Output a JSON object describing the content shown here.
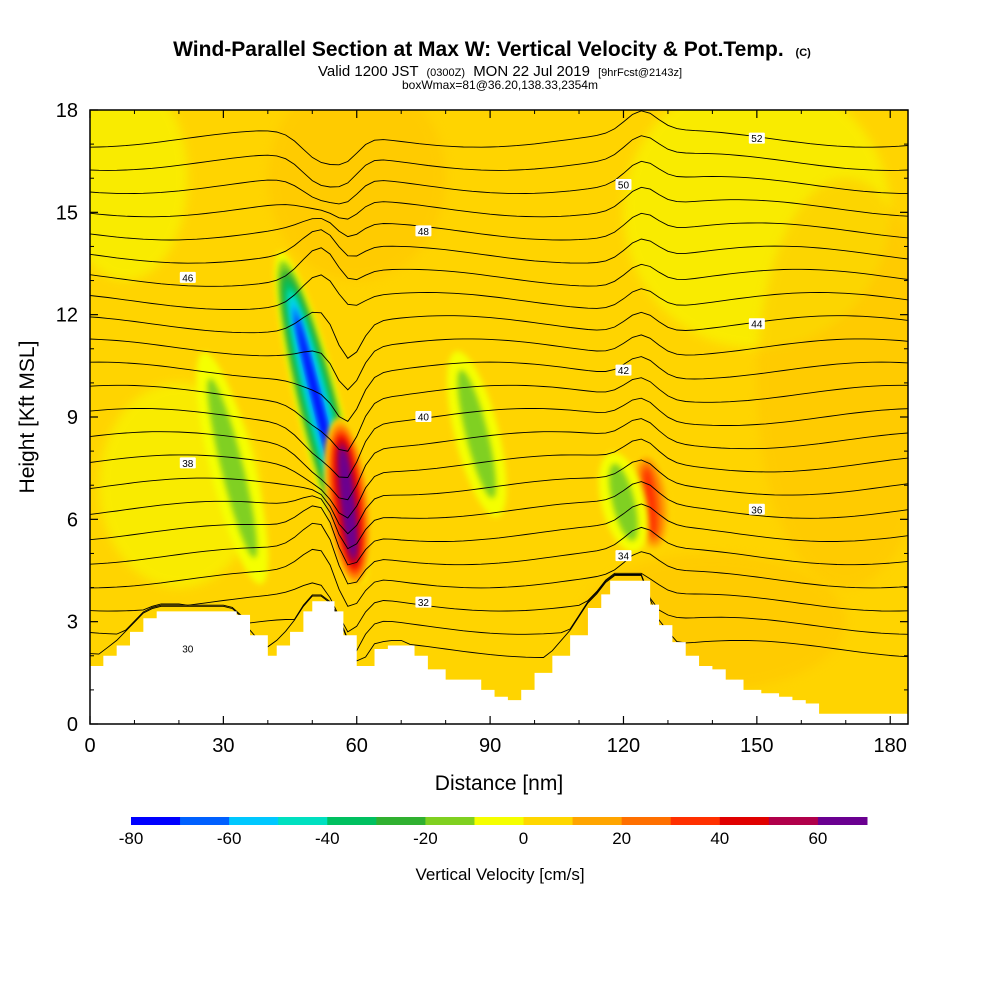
{
  "chart_data": {
    "type": "heatmap",
    "title": "Wind-Parallel Section at Max W: Vertical Velocity & Pot.Temp.",
    "title_mark": "(C)",
    "subtitle_parts": [
      "Valid 1200 JST",
      "(0300Z)",
      "MON 22 Jul 2019",
      "[9hrFcst@2143z]"
    ],
    "subtitle2": "boxWmax=81@36.20,138.33,2354m",
    "xlabel": "Distance [nm]",
    "ylabel": "Height [Kft MSL]",
    "xlim": [
      0,
      184
    ],
    "ylim": [
      0,
      18
    ],
    "xticks": [
      0,
      30,
      60,
      90,
      120,
      150,
      180
    ],
    "yticks": [
      0,
      3,
      6,
      9,
      12,
      15,
      18
    ],
    "grid": false,
    "colorbar": {
      "label": "Vertical Velocity [cm/s]",
      "placement": "bottom",
      "range": [
        -80,
        70
      ],
      "step": 10,
      "tick_values": [
        -80,
        -60,
        -40,
        -20,
        0,
        20,
        40,
        60
      ],
      "colors": [
        "#0000ff",
        "#0060ff",
        "#00c8ff",
        "#00e0c0",
        "#00c060",
        "#30b030",
        "#80d020",
        "#f5ff00",
        "#ffd700",
        "#ffa500",
        "#ff7000",
        "#ff3000",
        "#e00000",
        "#b0004a",
        "#6a0090"
      ]
    },
    "background_value_range": [
      0,
      20
    ],
    "w_features": [
      {
        "type": "downdraft",
        "x": 52,
        "y_range": [
          4,
          14
        ],
        "min_w": -80
      },
      {
        "type": "updraft",
        "x": 58,
        "y_range": [
          4,
          9
        ],
        "max_w": 81
      },
      {
        "type": "updraft",
        "x": 126,
        "y_range": [
          5,
          8
        ],
        "max_w": 40
      },
      {
        "type": "downdraft",
        "x": 120,
        "y_range": [
          5,
          8
        ],
        "min_w": -20
      },
      {
        "type": "downdraft",
        "x": 87,
        "y_range": [
          6,
          11
        ],
        "min_w": -20
      },
      {
        "type": "downdraft",
        "x": 32,
        "y_range": [
          4,
          11
        ],
        "min_w": -20
      }
    ],
    "theta_contours": {
      "label": "Pot.Temp.",
      "values": [
        30,
        32,
        34,
        36,
        38,
        40,
        42,
        44,
        46,
        48,
        50,
        52
      ],
      "labels_shown": [
        "30",
        "32",
        "34",
        "36",
        "38",
        "40",
        "42",
        "44",
        "46",
        "48",
        "50",
        "52"
      ]
    },
    "terrain_height_kft": {
      "x": [
        0,
        3,
        6,
        9,
        12,
        15,
        20,
        25,
        30,
        33,
        36,
        40,
        42,
        45,
        48,
        50,
        52,
        55,
        57,
        60,
        62,
        64,
        67,
        70,
        73,
        76,
        80,
        84,
        88,
        91,
        94,
        97,
        100,
        104,
        108,
        112,
        115,
        117,
        119,
        121,
        124,
        126,
        128,
        131,
        134,
        137,
        140,
        143,
        147,
        151,
        155,
        158,
        161,
        164,
        166,
        170,
        175,
        180,
        184
      ],
      "y": [
        1.7,
        2.0,
        2.3,
        2.7,
        3.1,
        3.3,
        3.3,
        3.3,
        3.3,
        3.2,
        2.6,
        2.0,
        2.3,
        2.7,
        3.3,
        3.6,
        3.6,
        3.3,
        2.6,
        1.7,
        1.7,
        2.2,
        2.3,
        2.3,
        2.0,
        1.6,
        1.3,
        1.3,
        1.0,
        0.8,
        0.7,
        1.0,
        1.5,
        2.0,
        2.6,
        3.4,
        3.8,
        4.2,
        4.2,
        4.2,
        4.2,
        3.5,
        2.9,
        2.4,
        2.0,
        1.7,
        1.6,
        1.3,
        1.0,
        0.9,
        0.8,
        0.7,
        0.6,
        0.3,
        0.3,
        0.3,
        0.3,
        0.3,
        0.3
      ]
    }
  }
}
